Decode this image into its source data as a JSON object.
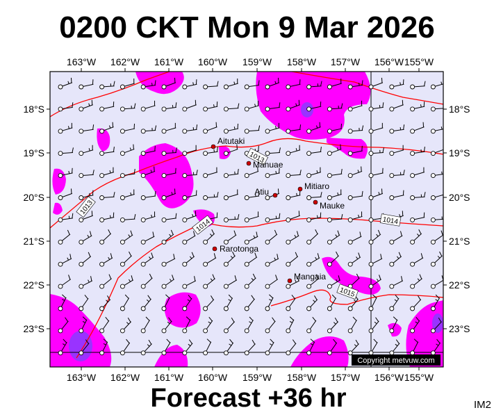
{
  "title": "0200 CKT Mon 9 Mar 2026",
  "footer": "Forecast +36 hr",
  "corner_tag": "IM2",
  "credit": "Copyright metvuw.com",
  "colors": {
    "background": "#e6e6fa",
    "rain_light": "#ff00ff",
    "rain_heavy": "#9933ff",
    "isobar": "#ff0000",
    "grid": "#000000",
    "town": "#cc0000"
  },
  "lon_labels": [
    "163°W",
    "162°W",
    "161°W",
    "160°W",
    "159°W",
    "158°W",
    "157°W",
    "156°W",
    "155°W"
  ],
  "lat_labels": [
    "18°S",
    "19°S",
    "20°S",
    "21°S",
    "22°S",
    "23°S"
  ],
  "places": [
    {
      "name": "Aitutaki"
    },
    {
      "name": "Manuae"
    },
    {
      "name": "Atiu"
    },
    {
      "name": "Mitiaro"
    },
    {
      "name": "Mauke"
    },
    {
      "name": "Rarotonga"
    },
    {
      "name": "Mangaia"
    }
  ],
  "isobars": [
    {
      "label": "1013"
    },
    {
      "label": "1013"
    },
    {
      "label": "1014"
    },
    {
      "label": "1014"
    },
    {
      "label": "1015"
    }
  ],
  "wind_icon": "wind-barb-icon"
}
